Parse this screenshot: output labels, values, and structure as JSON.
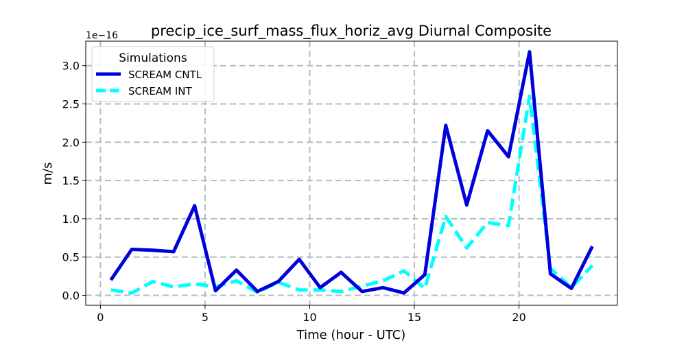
{
  "chart_data": {
    "type": "line",
    "title": "precip_ice_surf_mass_flux_horiz_avg Diurnal Composite",
    "xlabel": "Time (hour - UTC)",
    "ylabel": "m/s",
    "y_offset_label": "1e−16",
    "xlim": [
      -0.7,
      24.7
    ],
    "ylim": [
      -0.13,
      3.32
    ],
    "xticks": [
      0,
      5,
      10,
      15,
      20
    ],
    "yticks": [
      0.0,
      0.5,
      1.0,
      1.5,
      2.0,
      2.5,
      3.0
    ],
    "ytick_labels": [
      "0.0",
      "0.5",
      "1.0",
      "1.5",
      "2.0",
      "2.5",
      "3.0"
    ],
    "grid": true,
    "legend": {
      "title": "Simulations",
      "placement": "upper-left"
    },
    "x": [
      0.5,
      1.5,
      2.5,
      3.5,
      4.5,
      5.5,
      6.5,
      7.5,
      8.5,
      9.5,
      10.5,
      11.5,
      12.5,
      13.5,
      14.5,
      15.5,
      16.5,
      17.5,
      18.5,
      19.5,
      20.5,
      21.5,
      22.5,
      23.5
    ],
    "series": [
      {
        "name": "SCREAM CNTL",
        "color": "#0000dd",
        "dash": "solid",
        "values": [
          0.2,
          0.6,
          0.59,
          0.57,
          1.17,
          0.06,
          0.33,
          0.05,
          0.18,
          0.47,
          0.1,
          0.3,
          0.05,
          0.1,
          0.03,
          0.27,
          2.22,
          1.18,
          2.15,
          1.81,
          3.18,
          0.28,
          0.09,
          0.64
        ]
      },
      {
        "name": "SCREAM INT",
        "color": "#00ffff",
        "dash": "dashed",
        "values": [
          0.07,
          0.03,
          0.18,
          0.11,
          0.15,
          0.11,
          0.19,
          0.04,
          0.17,
          0.07,
          0.07,
          0.05,
          0.12,
          0.19,
          0.32,
          0.09,
          1.03,
          0.62,
          0.95,
          0.91,
          2.6,
          0.35,
          0.1,
          0.39
        ]
      }
    ]
  }
}
